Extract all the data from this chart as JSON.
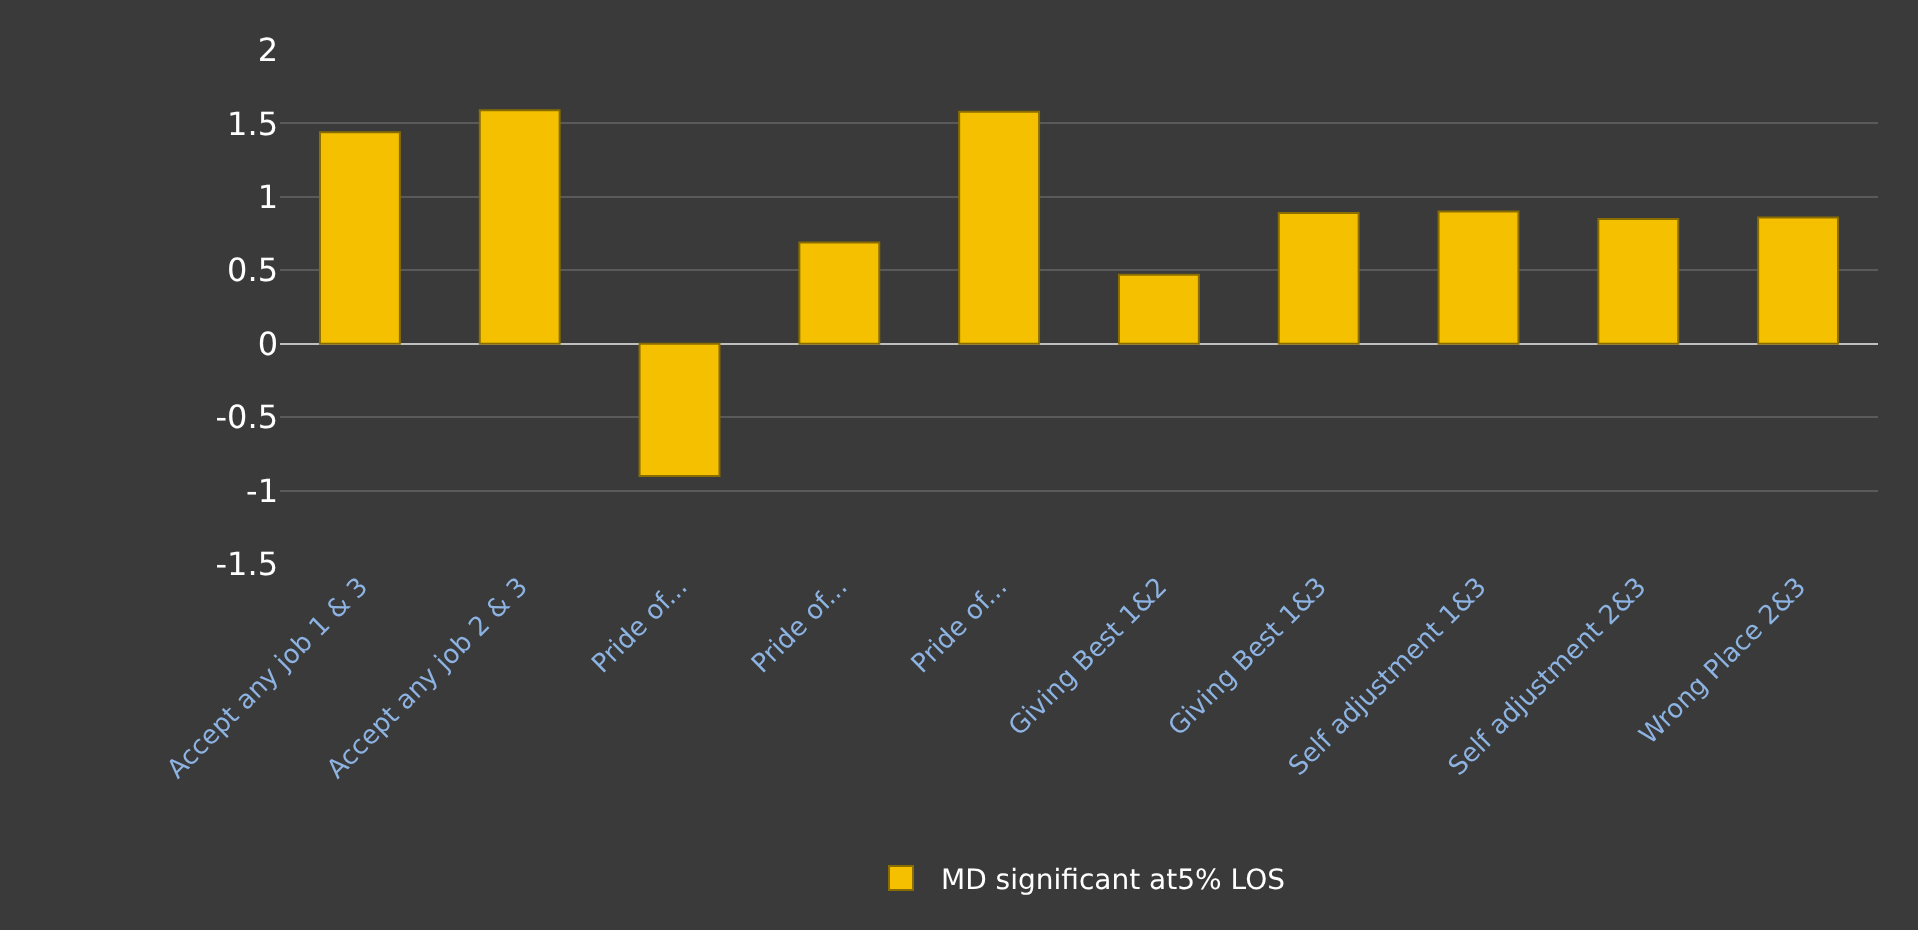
{
  "chart_data": {
    "type": "bar",
    "categories": [
      "Accept any job 1 & 3",
      "Accept any job 2 & 3",
      "Pride of...",
      "Pride of...",
      "Pride of...",
      "Giving Best 1&2",
      "Giving Best 1&3",
      "Self adjustment 1&3",
      "Self adjustment 2&3",
      "Wrong Place 2&3"
    ],
    "series": [
      {
        "name": "MD significant at5% LOS",
        "color": "#f5c000",
        "values": [
          1.44,
          1.59,
          -0.9,
          0.69,
          1.58,
          0.47,
          0.89,
          0.9,
          0.85,
          0.86
        ]
      }
    ],
    "ylim": [
      -1.5,
      2
    ],
    "yticks": [
      -1.5,
      -1,
      -0.5,
      0,
      0.5,
      1,
      1.5,
      2
    ],
    "grid": "y",
    "legend": "bottom"
  }
}
